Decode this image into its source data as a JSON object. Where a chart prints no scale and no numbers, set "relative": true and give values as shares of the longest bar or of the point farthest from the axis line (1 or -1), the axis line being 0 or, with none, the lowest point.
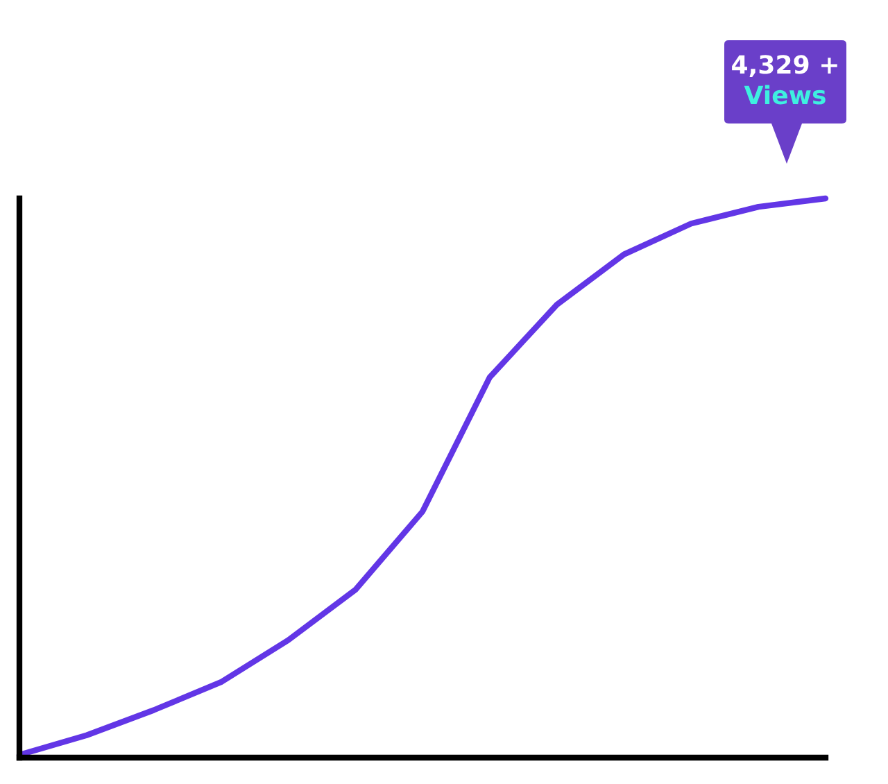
{
  "chart_data": {
    "type": "line",
    "relative": true,
    "categories": [
      null,
      null,
      null,
      null,
      null,
      null,
      null,
      null,
      null,
      null,
      null,
      null,
      null
    ],
    "series": [
      {
        "color": "#6236e6",
        "values": [
          0.005,
          0.04,
          0.085,
          0.135,
          0.21,
          0.3,
          0.44,
          0.68,
          0.81,
          0.9,
          0.955,
          0.985,
          1.0
        ]
      }
    ],
    "annotations": [
      "4,329 +",
      "Views"
    ],
    "grid": false,
    "legend": false,
    "marker": "none",
    "line_style": "solid"
  }
}
